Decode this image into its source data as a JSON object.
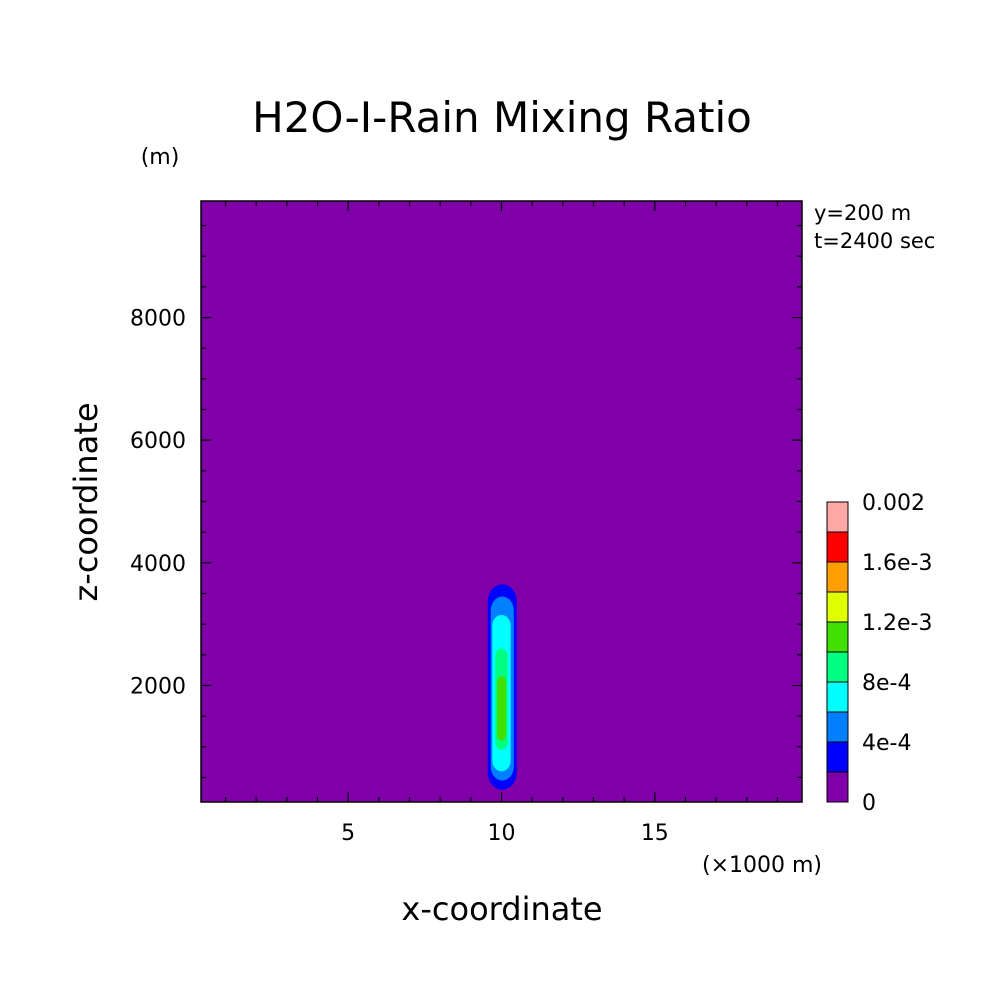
{
  "chart_data": {
    "type": "heatmap",
    "title": "H2O-I-Rain Mixing Ratio",
    "xlabel": "x-coordinate",
    "ylabel": "z-coordinate",
    "x_unit": "(×1000 m)",
    "y_unit": "(m)",
    "info_lines": [
      "y=200 m",
      "t=2400 sec"
    ],
    "xlim": [
      0.2,
      19.8
    ],
    "ylim": [
      100,
      9900
    ],
    "x_ticks": [
      5,
      10,
      15
    ],
    "y_ticks": [
      2000,
      4000,
      6000,
      8000
    ],
    "x_minor_step": 1,
    "y_minor_step": 500,
    "background_level": 0,
    "colorbar": {
      "levels": [
        0,
        0.0002,
        0.0004,
        0.0006,
        0.0008,
        0.001,
        0.0012,
        0.0014,
        0.0016,
        0.0018,
        0.002
      ],
      "colors": [
        "#7f00a8",
        "#0000ff",
        "#0080ff",
        "#00ffff",
        "#00ff80",
        "#40e000",
        "#e0ff00",
        "#ffa000",
        "#ff0000",
        "#ffa8a8"
      ],
      "labels": [
        {
          "value": 0,
          "text": "0"
        },
        {
          "value": 0.0004,
          "text": "4e-4"
        },
        {
          "value": 0.0008,
          "text": "8e-4"
        },
        {
          "value": 0.0012,
          "text": "1.2e-3"
        },
        {
          "value": 0.0016,
          "text": "1.6e-3"
        },
        {
          "value": 0.002,
          "text": "0.002"
        }
      ]
    },
    "contours": [
      {
        "level_index": 1,
        "color": "#0000ff",
        "x": [
          9.55,
          10.5
        ],
        "z": [
          300,
          3650
        ]
      },
      {
        "level_index": 2,
        "color": "#0080ff",
        "x": [
          9.65,
          10.4
        ],
        "z": [
          450,
          3450
        ]
      },
      {
        "level_index": 3,
        "color": "#00ffff",
        "x": [
          9.7,
          10.3
        ],
        "z": [
          600,
          3150
        ]
      },
      {
        "level_index": 4,
        "color": "#00ff80",
        "x": [
          9.8,
          10.2
        ],
        "z": [
          950,
          2600
        ]
      },
      {
        "level_index": 5,
        "color": "#40e000",
        "x": [
          9.85,
          10.15
        ],
        "z": [
          1100,
          2150
        ]
      }
    ]
  }
}
